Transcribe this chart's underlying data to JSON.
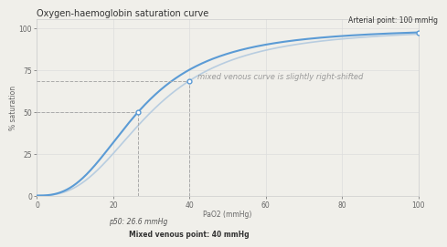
{
  "title": "Oxygen-haemoglobin saturation curve",
  "xlabel": "PaO2 (mmHg)",
  "ylabel": "% saturation",
  "xlim": [
    0,
    100
  ],
  "ylim": [
    0,
    105
  ],
  "xticks": [
    0,
    20,
    40,
    60,
    80,
    100
  ],
  "yticks": [
    0,
    25,
    50,
    75,
    100
  ],
  "curve_color": "#5B9BD5",
  "curve_color2": "#B8CDE0",
  "background_color": "#f0efea",
  "grid_color": "#dddddd",
  "p50": 26.6,
  "p50_sat": 50,
  "mixed_venous_pao2": 40,
  "arterial_pao2": 100,
  "p50_shifted": 30.0,
  "hill_n": 2.7,
  "annotation_p50": "p50: 26.6 mmHg",
  "annotation_mv": "Mixed venous point: 40 mmHg",
  "annotation_arterial": "Arterial point: 100 mmHg",
  "annotation_shift": "mixed venous curve is slightly right-shifted",
  "title_fontsize": 7,
  "label_fontsize": 5.5,
  "tick_fontsize": 5.5,
  "annot_fontsize": 5.5,
  "annot_shift_fontsize": 6
}
